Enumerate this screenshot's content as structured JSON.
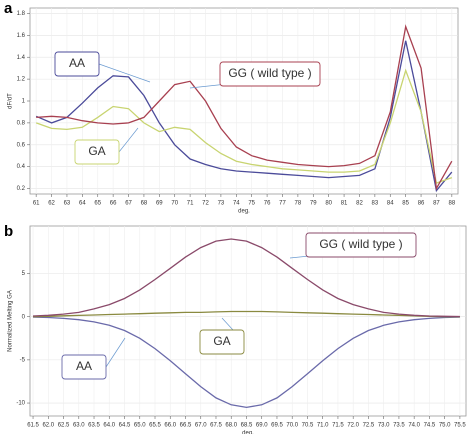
{
  "chart_data": [
    {
      "type": "line",
      "label": "a",
      "xlabel": "deg.",
      "ylabel": "dF/dT",
      "grid": true,
      "x": [
        61,
        62,
        63,
        64,
        65,
        66,
        67,
        68,
        69,
        70,
        71,
        72,
        73,
        74,
        75,
        76,
        77,
        78,
        79,
        80,
        81,
        82,
        83,
        84,
        85,
        86,
        87,
        88
      ],
      "xlim": [
        60.6,
        88.4
      ],
      "xticks": [
        61,
        62,
        63,
        64,
        65,
        66,
        67,
        68,
        69,
        70,
        71,
        72,
        73,
        74,
        75,
        76,
        77,
        78,
        79,
        80,
        81,
        82,
        83,
        84,
        85,
        86,
        87,
        88
      ],
      "ylim": [
        0.15,
        1.85
      ],
      "yticks": [
        0.2,
        0.4,
        0.6,
        0.8,
        1,
        1.2,
        1.4,
        1.6,
        1.8
      ],
      "series": [
        {
          "name": "AA",
          "color": "#4b4b9a",
          "values": [
            0.86,
            0.8,
            0.85,
            0.98,
            1.12,
            1.23,
            1.22,
            1.05,
            0.8,
            0.6,
            0.47,
            0.42,
            0.38,
            0.36,
            0.35,
            0.34,
            0.33,
            0.32,
            0.31,
            0.3,
            0.31,
            0.32,
            0.38,
            0.85,
            1.55,
            0.9,
            0.18,
            0.35
          ]
        },
        {
          "name": "GA",
          "color": "#c8d470",
          "values": [
            0.8,
            0.75,
            0.74,
            0.76,
            0.85,
            0.95,
            0.93,
            0.8,
            0.72,
            0.76,
            0.74,
            0.62,
            0.52,
            0.45,
            0.42,
            0.4,
            0.38,
            0.37,
            0.36,
            0.35,
            0.35,
            0.36,
            0.42,
            0.8,
            1.28,
            0.9,
            0.25,
            0.3
          ]
        },
        {
          "name": "GG ( wild type )",
          "color": "#a84050",
          "values": [
            0.85,
            0.86,
            0.85,
            0.82,
            0.8,
            0.79,
            0.8,
            0.85,
            1.0,
            1.15,
            1.18,
            1.0,
            0.75,
            0.58,
            0.5,
            0.46,
            0.44,
            0.42,
            0.41,
            0.4,
            0.41,
            0.43,
            0.5,
            0.9,
            1.68,
            1.3,
            0.2,
            0.45
          ]
        }
      ]
    },
    {
      "type": "line",
      "label": "b",
      "xlabel": "deg.",
      "ylabel": "Normalized Melting GA",
      "grid": true,
      "x": [
        61.5,
        62,
        62.5,
        63,
        63.5,
        64,
        64.5,
        65,
        65.5,
        66,
        66.5,
        67,
        67.5,
        68,
        68.5,
        69,
        69.5,
        70,
        70.5,
        71,
        71.5,
        72,
        72.5,
        73,
        73.5,
        74,
        74.5,
        75,
        75.5
      ],
      "xlim": [
        61.4,
        75.7
      ],
      "xticks": [
        61.5,
        {
          "value": 62,
          "label": "62.0"
        },
        62.5,
        {
          "value": 63,
          "label": "63.0"
        },
        63.5,
        {
          "value": 64,
          "label": "64.0"
        },
        64.5,
        {
          "value": 65,
          "label": "65.0"
        },
        65.5,
        {
          "value": 66,
          "label": "66.0"
        },
        66.5,
        {
          "value": 67,
          "label": "67.0"
        },
        67.5,
        {
          "value": 68,
          "label": "68.0"
        },
        68.5,
        {
          "value": 69,
          "label": "69.0"
        },
        69.5,
        {
          "value": 70,
          "label": "70.0"
        },
        70.5,
        {
          "value": 71,
          "label": "71.0"
        },
        71.5,
        {
          "value": 72,
          "label": "72.0"
        },
        72.5,
        {
          "value": 73,
          "label": "73.0"
        },
        73.5,
        {
          "value": 74,
          "label": "74.0"
        },
        74.5,
        {
          "value": 75,
          "label": "75.0"
        },
        75.5
      ],
      "ylim": [
        -11.5,
        10.5
      ],
      "yticks": [
        -10,
        -5,
        0,
        5
      ],
      "series": [
        {
          "name": "AA",
          "color": "#6a6aaa",
          "values": [
            -0.05,
            -0.1,
            -0.2,
            -0.35,
            -0.6,
            -1.0,
            -1.6,
            -2.5,
            -3.7,
            -5.1,
            -6.6,
            -8.1,
            -9.4,
            -10.2,
            -10.5,
            -10.2,
            -9.4,
            -8.1,
            -6.6,
            -5.1,
            -3.7,
            -2.5,
            -1.6,
            -1.0,
            -0.6,
            -0.35,
            -0.2,
            -0.1,
            -0.05
          ]
        },
        {
          "name": "GA",
          "color": "#8a8a40",
          "values": [
            0,
            0.05,
            0.1,
            0.15,
            0.2,
            0.25,
            0.3,
            0.35,
            0.4,
            0.45,
            0.5,
            0.5,
            0.55,
            0.6,
            0.6,
            0.6,
            0.55,
            0.5,
            0.45,
            0.4,
            0.35,
            0.3,
            0.25,
            0.2,
            0.15,
            0.1,
            0.05,
            0,
            0
          ]
        },
        {
          "name": "GG ( wild type )",
          "color": "#8a4a6a",
          "values": [
            0.08,
            0.16,
            0.3,
            0.5,
            0.9,
            1.4,
            2.1,
            3.1,
            4.3,
            5.6,
            6.9,
            8.0,
            8.75,
            9,
            8.75,
            8.0,
            6.9,
            5.6,
            4.3,
            3.1,
            2.1,
            1.4,
            0.9,
            0.5,
            0.3,
            0.16,
            0.08,
            0.04,
            0.02
          ]
        }
      ]
    }
  ]
}
